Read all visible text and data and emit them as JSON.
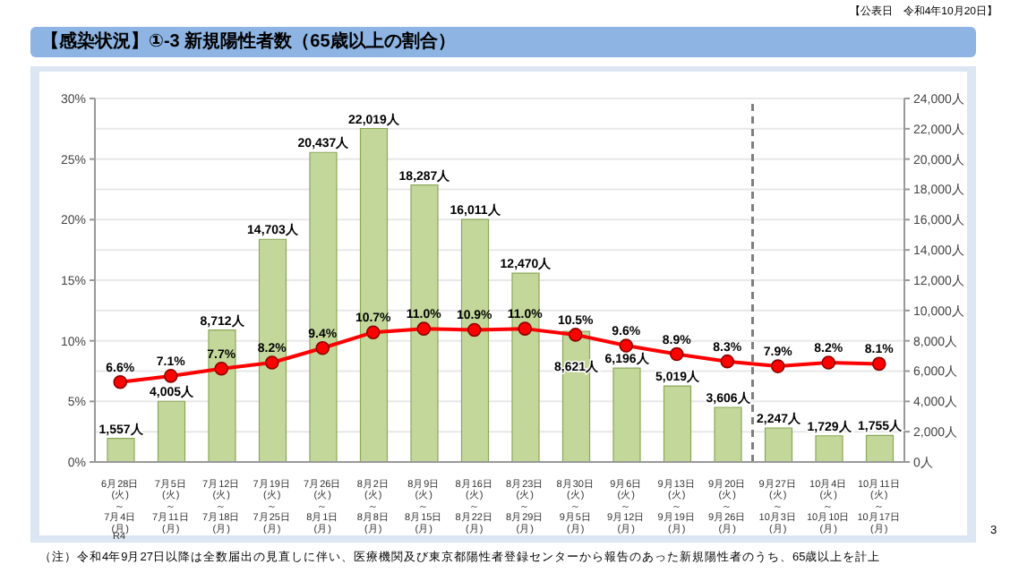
{
  "chart_data": {
    "type": "bar",
    "title": "【感染状況】①-3 新規陽性者数（65歳以上の割合）",
    "categories": [
      "6月28日\n(火)\n～\n7月4日\n(月)",
      "7月5日\n(火)\n～\n7月11日\n(月)",
      "7月12日\n(火)\n～\n7月18日\n(月)",
      "7月19日\n(火)\n～\n7月25日\n(月)",
      "7月26日\n(火)\n～\n8月1日\n(月)",
      "8月2日\n(火)\n～\n8月8日\n(月)",
      "8月9日\n(火)\n～\n8月15日\n(月)",
      "8月16日\n(火)\n～\n8月22日\n(月)",
      "8月23日\n(火)\n～\n8月29日\n(月)",
      "8月30日\n(火)\n～\n9月5日\n(月)",
      "9月6日\n(火)\n～\n9月12日\n(月)",
      "9月13日\n(火)\n～\n9月19日\n(月)",
      "9月20日\n(火)\n～\n9月26日\n(月)",
      "9月27日\n(火)\n～\n10月3日\n(月)",
      "10月4日\n(火)\n～\n10月10日\n(月)",
      "10月11日\n(火)\n～\n10月17日\n(月)"
    ],
    "series": [
      {
        "axis": "y2",
        "color": "#c4d79b",
        "values": [
          1557,
          4005,
          8712,
          14703,
          20437,
          22019,
          18287,
          16011,
          12470,
          8621,
          6196,
          5019,
          3606,
          2247,
          1729,
          1755
        ],
        "value_labels": [
          "1,557人",
          "4,005人",
          "8,712人",
          "14,703人",
          "20,437人",
          "22,019人",
          "18,287人",
          "16,011人",
          "12,470人",
          "8,621人",
          "6,196人",
          "5,019人",
          "3,606人",
          "2,247人",
          "1,729人",
          "1,755人"
        ]
      },
      {
        "type": "line",
        "color": "#ff0000",
        "marker": "circle",
        "values": [
          6.6,
          7.1,
          7.7,
          8.2,
          9.4,
          10.7,
          11.0,
          10.9,
          11.0,
          10.5,
          9.6,
          8.9,
          8.3,
          7.9,
          8.2,
          8.1
        ],
        "value_labels": [
          "6.6%",
          "7.1%",
          "7.7%",
          "8.2%",
          "9.4%",
          "10.7%",
          "11.0%",
          "10.9%",
          "11.0%",
          "10.5%",
          "9.6%",
          "8.9%",
          "8.3%",
          "7.9%",
          "8.2%",
          "8.1%"
        ]
      }
    ],
    "ylim": [
      0,
      30
    ],
    "yticks": [
      {
        "value": 0,
        "label": "0%"
      },
      {
        "value": 5,
        "label": "5%"
      },
      {
        "value": 10,
        "label": "10%"
      },
      {
        "value": 15,
        "label": "15%"
      },
      {
        "value": 20,
        "label": "20%"
      },
      {
        "value": 25,
        "label": "25%"
      },
      {
        "value": 30,
        "label": "30%"
      }
    ],
    "y2lim": [
      0,
      24000
    ],
    "y2ticks": [
      {
        "value": 0,
        "label": "0人"
      },
      {
        "value": 2000,
        "label": "2,000人"
      },
      {
        "value": 4000,
        "label": "4,000人"
      },
      {
        "value": 6000,
        "label": "6,000人"
      },
      {
        "value": 8000,
        "label": "8,000人"
      },
      {
        "value": 10000,
        "label": "10,000人"
      },
      {
        "value": 12000,
        "label": "12,000人"
      },
      {
        "value": 14000,
        "label": "14,000人"
      },
      {
        "value": 16000,
        "label": "16,000人"
      },
      {
        "value": 18000,
        "label": "18,000人"
      },
      {
        "value": 20000,
        "label": "20,000人"
      },
      {
        "value": 22000,
        "label": "22,000人"
      },
      {
        "value": 24000,
        "label": "24,000人"
      }
    ],
    "grid": "y",
    "legend": false,
    "ref_lines": [
      {
        "axis": "x",
        "value": "9月27日\n(火)\n～\n10月3日\n(月)",
        "line_style": "dashed",
        "color": "#7f7f7f"
      }
    ],
    "annotations": [
      "【公表日　令和4年10月20日】",
      "R4",
      "（注）令和4年9月27日以降は全数届出の見直しに伴い、医療機関及び東京都陽性者登録センターから報告のあった新規陽性者のうち、65歳以上を計上",
      "3"
    ]
  }
}
